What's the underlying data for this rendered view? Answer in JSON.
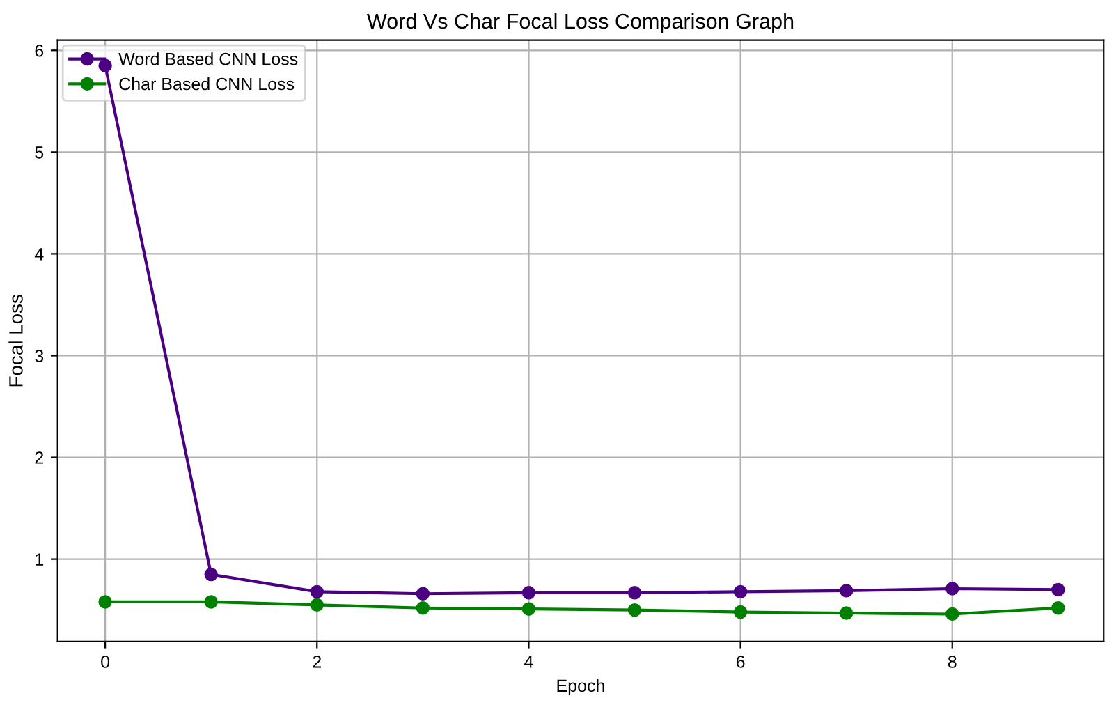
{
  "chart_data": {
    "type": "line",
    "title": "Word Vs Char Focal Loss Comparison Graph",
    "xlabel": "Epoch",
    "ylabel": "Focal Loss",
    "x": [
      0,
      1,
      2,
      3,
      4,
      5,
      6,
      7,
      8,
      9
    ],
    "series": [
      {
        "name": "Word Based CNN Loss",
        "color": "#4b0082",
        "values": [
          5.85,
          0.85,
          0.68,
          0.66,
          0.67,
          0.67,
          0.68,
          0.69,
          0.71,
          0.7
        ]
      },
      {
        "name": "Char Based CNN Loss",
        "color": "#008000",
        "values": [
          0.58,
          0.58,
          0.55,
          0.52,
          0.51,
          0.5,
          0.48,
          0.47,
          0.46,
          0.52
        ]
      }
    ],
    "xlim": [
      -0.45,
      9.43
    ],
    "ylim": [
      0.19,
      6.1
    ],
    "xticks": [
      0,
      2,
      4,
      6,
      8
    ],
    "yticks": [
      1,
      2,
      3,
      4,
      5,
      6
    ],
    "grid": true,
    "legend": "top left",
    "marker": "circle",
    "line_style": "solid"
  }
}
